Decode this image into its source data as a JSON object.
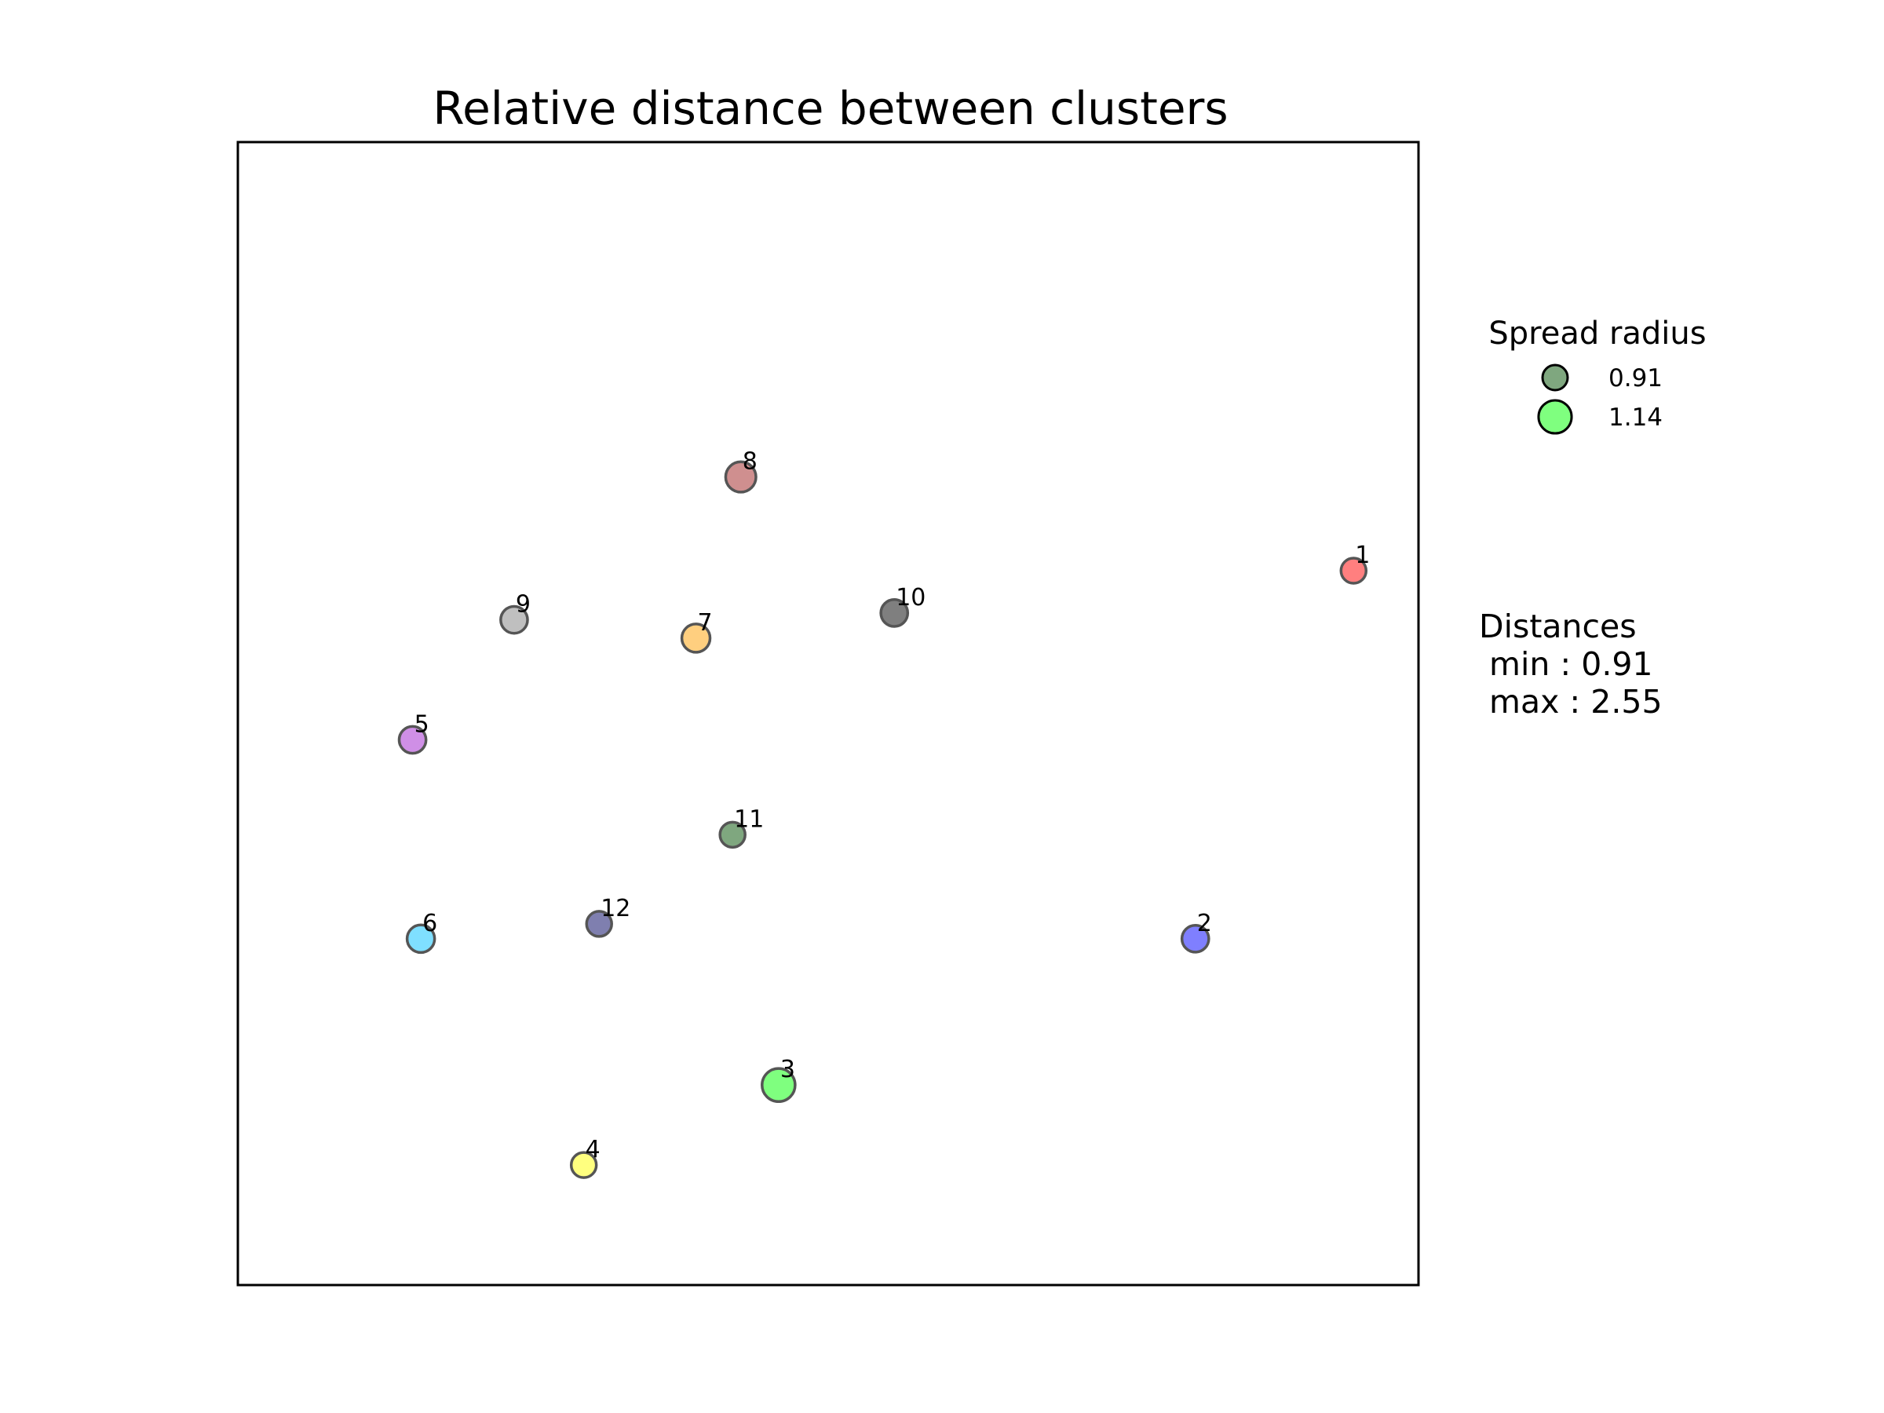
{
  "chart_data": {
    "type": "scatter",
    "title": "Relative distance between clusters",
    "xlabel": "",
    "ylabel": "",
    "axes_ticks": false,
    "grid": false,
    "x_range": [
      0,
      1
    ],
    "y_range": [
      0,
      1
    ],
    "points": [
      {
        "label": "1",
        "x": 0.945,
        "y": 0.625,
        "spread": 0.91,
        "color": "#ff7f7f"
      },
      {
        "label": "2",
        "x": 0.811,
        "y": 0.303,
        "spread": 0.96,
        "color": "#7f7fff"
      },
      {
        "label": "3",
        "x": 0.458,
        "y": 0.175,
        "spread": 1.14,
        "color": "#7fff7f"
      },
      {
        "label": "4",
        "x": 0.293,
        "y": 0.105,
        "spread": 0.91,
        "color": "#ffff7f"
      },
      {
        "label": "5",
        "x": 0.148,
        "y": 0.477,
        "spread": 0.96,
        "color": "#cf8fe6"
      },
      {
        "label": "6",
        "x": 0.155,
        "y": 0.303,
        "spread": 0.98,
        "color": "#7fdfff"
      },
      {
        "label": "7",
        "x": 0.388,
        "y": 0.566,
        "spread": 1.0,
        "color": "#ffcf7f"
      },
      {
        "label": "8",
        "x": 0.426,
        "y": 0.707,
        "spread": 1.06,
        "color": "#cf8f8f"
      },
      {
        "label": "9",
        "x": 0.234,
        "y": 0.582,
        "spread": 0.96,
        "color": "#bfbfbf"
      },
      {
        "label": "10",
        "x": 0.556,
        "y": 0.588,
        "spread": 0.96,
        "color": "#7f7f7f"
      },
      {
        "label": "11",
        "x": 0.419,
        "y": 0.394,
        "spread": 0.91,
        "color": "#7fa77f"
      },
      {
        "label": "12",
        "x": 0.306,
        "y": 0.316,
        "spread": 0.91,
        "color": "#7f7faf"
      }
    ],
    "legend": {
      "title": "Spread radius",
      "placement": "right",
      "entries": [
        {
          "label": "0.91",
          "color": "#7fa77f",
          "spread": 0.91
        },
        {
          "label": "1.14",
          "color": "#7fff7f",
          "spread": 1.14
        }
      ]
    },
    "distances": {
      "heading": "Distances",
      "min": " min : 0.91",
      "max": " max : 2.55"
    }
  }
}
